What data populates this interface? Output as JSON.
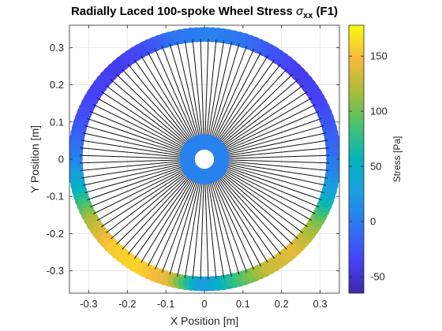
{
  "chart_data": {
    "type": "scatter",
    "title_main": "Radially Laced 100-spoke Wheel Stress ",
    "title_sigma": "σ",
    "title_sub": "xx",
    "title_suffix": " (F1)",
    "xlabel": "X Position [m]",
    "ylabel": "Y Position [m]",
    "colorbar_label": "Stress [Pa]",
    "xlim": [
      -0.35,
      0.35
    ],
    "ylim": [
      -0.36,
      0.36
    ],
    "clim": [
      -65,
      178
    ],
    "x_ticks": [
      -0.3,
      -0.2,
      -0.1,
      0,
      0.1,
      0.2,
      0.3
    ],
    "x_tick_labels": [
      "-0.3",
      "-0.2",
      "-0.1",
      "0",
      "0.1",
      "0.2",
      "0.3"
    ],
    "y_ticks": [
      -0.3,
      -0.2,
      -0.1,
      0,
      0.1,
      0.2,
      0.3
    ],
    "y_tick_labels": [
      "-0.3",
      "-0.2",
      "-0.1",
      "0",
      "0.1",
      "0.2",
      "0.3"
    ],
    "colorbar_ticks": [
      -50,
      0,
      50,
      100,
      150
    ],
    "colorbar_tick_labels": [
      "-50",
      "0",
      "50",
      "100",
      "150"
    ],
    "grid": true,
    "spokes": 100,
    "rim_radius": 0.335,
    "hub_outer_radius": 0.065,
    "hub_hole_radius": 0.025,
    "hub_stress": 5,
    "rim_stress_by_angle_deg": [
      {
        "angle": 0,
        "stress": -5
      },
      {
        "angle": 15,
        "stress": -20
      },
      {
        "angle": 30,
        "stress": -35
      },
      {
        "angle": 45,
        "stress": -40
      },
      {
        "angle": 60,
        "stress": -25
      },
      {
        "angle": 75,
        "stress": -5
      },
      {
        "angle": 90,
        "stress": 5
      },
      {
        "angle": 105,
        "stress": -5
      },
      {
        "angle": 120,
        "stress": -30
      },
      {
        "angle": 135,
        "stress": -40
      },
      {
        "angle": 150,
        "stress": -35
      },
      {
        "angle": 165,
        "stress": -25
      },
      {
        "angle": 180,
        "stress": 0
      },
      {
        "angle": 195,
        "stress": 50
      },
      {
        "angle": 210,
        "stress": 120
      },
      {
        "angle": 225,
        "stress": 155
      },
      {
        "angle": 240,
        "stress": 160
      },
      {
        "angle": 255,
        "stress": 140
      },
      {
        "angle": 270,
        "stress": 20
      },
      {
        "angle": 285,
        "stress": 80
      },
      {
        "angle": 300,
        "stress": 130
      },
      {
        "angle": 315,
        "stress": 140
      },
      {
        "angle": 330,
        "stress": 110
      },
      {
        "angle": 345,
        "stress": 40
      },
      {
        "angle": 360,
        "stress": -5
      }
    ]
  }
}
